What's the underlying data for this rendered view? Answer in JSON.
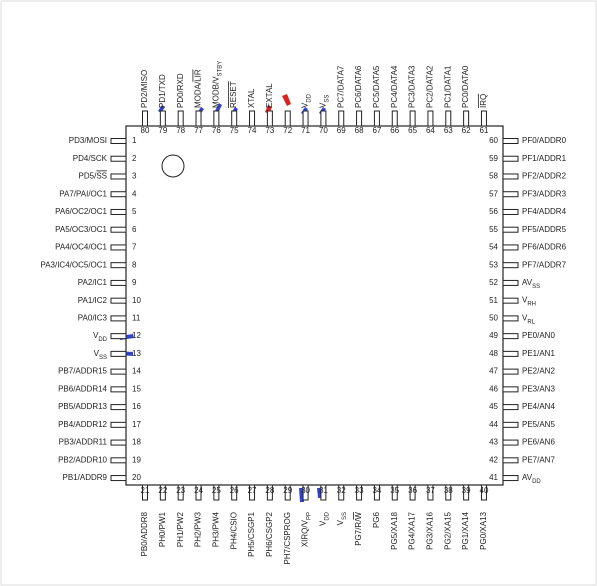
{
  "pins": {
    "left": [
      {
        "num": 1,
        "label": "PD3/MOSI"
      },
      {
        "num": 2,
        "label": "PD4/SCK"
      },
      {
        "num": 3,
        "label": [
          {
            "text": "PD5/"
          },
          {
            "text": "SS",
            "style": "over"
          }
        ]
      },
      {
        "num": 4,
        "label": "PA7/PAI/OC1"
      },
      {
        "num": 5,
        "label": "PA6/OC2/OC1"
      },
      {
        "num": 6,
        "label": "PA5/OC3/OC1"
      },
      {
        "num": 7,
        "label": "PA4/OC4/OC1"
      },
      {
        "num": 8,
        "label": "PA3/IC4/OC5/OC1"
      },
      {
        "num": 9,
        "label": "PA2/IC1"
      },
      {
        "num": 10,
        "label": "PA1/IC2"
      },
      {
        "num": 11,
        "label": "PA0/IC3"
      },
      {
        "num": 12,
        "label": [
          {
            "text": "V"
          },
          {
            "text": "DD",
            "style": "sub"
          }
        ]
      },
      {
        "num": 13,
        "label": [
          {
            "text": "V"
          },
          {
            "text": "SS",
            "style": "sub"
          }
        ]
      },
      {
        "num": 14,
        "label": "PB7/ADDR15"
      },
      {
        "num": 15,
        "label": "PB6/ADDR14"
      },
      {
        "num": 16,
        "label": "PB5/ADDR13"
      },
      {
        "num": 17,
        "label": "PB4/ADDR12"
      },
      {
        "num": 18,
        "label": "PB3/ADDR11"
      },
      {
        "num": 19,
        "label": "PB2/ADDR10"
      },
      {
        "num": 20,
        "label": "PB1/ADDR9"
      }
    ],
    "bottom": [
      {
        "num": 21,
        "label": "PB0/ADDR8"
      },
      {
        "num": 22,
        "label": "PH0/PW1"
      },
      {
        "num": 23,
        "label": "PH1/PW2"
      },
      {
        "num": 24,
        "label": "PH2/PW3"
      },
      {
        "num": 25,
        "label": "PH3/PW4"
      },
      {
        "num": 26,
        "label": "PH4/CSIO"
      },
      {
        "num": 27,
        "label": "PH5/CSGP1"
      },
      {
        "num": 28,
        "label": "PH6/CSGP2"
      },
      {
        "num": 29,
        "label": "PH7/CSPROG"
      },
      {
        "num": 30,
        "label": [
          {
            "text": "XIRQ/V"
          },
          {
            "text": "PP",
            "style": "sub"
          }
        ]
      },
      {
        "num": 31,
        "label": [
          {
            "text": "V"
          },
          {
            "text": "DD",
            "style": "sub"
          }
        ]
      },
      {
        "num": 32,
        "label": [
          {
            "text": "V"
          },
          {
            "text": "SS",
            "style": "sub"
          }
        ]
      },
      {
        "num": 33,
        "label": [
          {
            "text": "PG7/R/"
          },
          {
            "text": "W",
            "style": "over"
          }
        ]
      },
      {
        "num": 34,
        "label": "PG6"
      },
      {
        "num": 35,
        "label": "PG5/XA18"
      },
      {
        "num": 36,
        "label": "PG4/XA17"
      },
      {
        "num": 37,
        "label": "PG3/XA16"
      },
      {
        "num": 38,
        "label": "PG2/XA15"
      },
      {
        "num": 39,
        "label": "PG1/XA14"
      },
      {
        "num": 40,
        "label": "PG0/XA13"
      }
    ],
    "right": [
      {
        "num": 60,
        "label": "PF0/ADDR0"
      },
      {
        "num": 59,
        "label": "PF1/ADDR1"
      },
      {
        "num": 58,
        "label": "PF2/ADDR2"
      },
      {
        "num": 57,
        "label": "PF3/ADDR3"
      },
      {
        "num": 56,
        "label": "PF4/ADDR4"
      },
      {
        "num": 55,
        "label": "PF5/ADDR5"
      },
      {
        "num": 54,
        "label": "PF6/ADDR6"
      },
      {
        "num": 53,
        "label": "PF7/ADDR7"
      },
      {
        "num": 52,
        "label": [
          {
            "text": "AV"
          },
          {
            "text": "SS",
            "style": "sub"
          }
        ]
      },
      {
        "num": 51,
        "label": [
          {
            "text": "V"
          },
          {
            "text": "RH",
            "style": "sub"
          }
        ]
      },
      {
        "num": 50,
        "label": [
          {
            "text": "V"
          },
          {
            "text": "RL",
            "style": "sub"
          }
        ]
      },
      {
        "num": 49,
        "label": "PE0/AN0"
      },
      {
        "num": 48,
        "label": "PE1/AN1"
      },
      {
        "num": 47,
        "label": "PE2/AN2"
      },
      {
        "num": 46,
        "label": "PE3/AN3"
      },
      {
        "num": 45,
        "label": "PE4/AN4"
      },
      {
        "num": 44,
        "label": "PE5/AN5"
      },
      {
        "num": 43,
        "label": "PE6/AN6"
      },
      {
        "num": 42,
        "label": "PE7/AN7"
      },
      {
        "num": 41,
        "label": [
          {
            "text": "AV"
          },
          {
            "text": "DD",
            "style": "sub"
          }
        ]
      }
    ],
    "top": [
      {
        "num": 80,
        "label": "PD2/MISO"
      },
      {
        "num": 79,
        "label": "PD1/TXD"
      },
      {
        "num": 78,
        "label": "PD0/RXD"
      },
      {
        "num": 77,
        "label": [
          {
            "text": "MODA/"
          },
          {
            "text": "LIR",
            "style": "over"
          }
        ]
      },
      {
        "num": 76,
        "label": [
          {
            "text": "MODB/V"
          },
          {
            "text": "STBY",
            "style": "sub"
          }
        ]
      },
      {
        "num": 75,
        "label": [
          {
            "text": "RESET",
            "style": "over"
          }
        ]
      },
      {
        "num": 74,
        "label": "XTAL"
      },
      {
        "num": 73,
        "label": "EXTAL"
      },
      {
        "num": 72
      },
      {
        "num": 71,
        "label": [
          {
            "text": "V"
          },
          {
            "text": "DD",
            "style": "sub"
          }
        ]
      },
      {
        "num": 70,
        "label": [
          {
            "text": "V"
          },
          {
            "text": "SS",
            "style": "sub"
          }
        ]
      },
      {
        "num": 69,
        "label": "PC7/DATA7"
      },
      {
        "num": 68,
        "label": "PC6/DATA6"
      },
      {
        "num": 67,
        "label": "PC5/DATA5"
      },
      {
        "num": 66,
        "label": "PC4/DATA4"
      },
      {
        "num": 65,
        "label": "PC3/DATA3"
      },
      {
        "num": 64,
        "label": "PC2/DATA2"
      },
      {
        "num": 63,
        "label": "PC1/DATA1"
      },
      {
        "num": 62,
        "label": "PC0/DATA0"
      },
      {
        "num": 61,
        "label": [
          {
            "text": "IRQ",
            "style": "over"
          }
        ]
      }
    ]
  }
}
